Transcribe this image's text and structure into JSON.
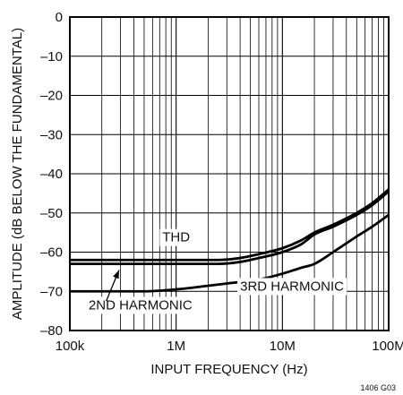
{
  "chart_data": {
    "type": "line",
    "xscale": "log",
    "xlim": [
      100000,
      100000000
    ],
    "ylim": [
      -80,
      0
    ],
    "xlabel": "INPUT FREQUENCY (Hz)",
    "ylabel": "AMPLITUDE (dB BELOW THE FUNDAMENTAL)",
    "x_ticks": [
      {
        "value": 100000,
        "label": "100k"
      },
      {
        "value": 1000000,
        "label": "1M"
      },
      {
        "value": 10000000,
        "label": "10M"
      },
      {
        "value": 100000000,
        "label": "100M"
      }
    ],
    "y_ticks": [
      0,
      -10,
      -20,
      -30,
      -40,
      -50,
      -60,
      -70,
      -80
    ],
    "y_tick_labels": [
      "0",
      "–10",
      "–20",
      "–30",
      "–40",
      "–50",
      "–60",
      "–70",
      "–80"
    ],
    "grid": true,
    "series": [
      {
        "name": "THD",
        "x": [
          100000,
          1000000,
          2500000,
          4000000,
          6000000,
          10000000,
          15000000,
          20000000,
          30000000,
          50000000,
          70000000,
          100000000
        ],
        "y": [
          -62,
          -62,
          -62,
          -61.5,
          -60.5,
          -59,
          -57,
          -55,
          -53,
          -50,
          -47.5,
          -44
        ]
      },
      {
        "name": "2ND HARMONIC",
        "x": [
          100000,
          1000000,
          2500000,
          4000000,
          6000000,
          10000000,
          15000000,
          20000000,
          30000000,
          50000000,
          70000000,
          100000000
        ],
        "y": [
          -63,
          -63,
          -63,
          -62.5,
          -61.5,
          -60,
          -58,
          -55.5,
          -53.5,
          -50.5,
          -48,
          -44.5
        ]
      },
      {
        "name": "3RD HARMONIC",
        "x": [
          100000,
          500000,
          1000000,
          3000000,
          6000000,
          10000000,
          15000000,
          20000000,
          30000000,
          50000000,
          70000000,
          100000000
        ],
        "y": [
          -70,
          -70,
          -69.5,
          -68,
          -67,
          -65.5,
          -64,
          -63,
          -60,
          -56,
          -53.5,
          -50.5
        ]
      }
    ],
    "annotations": {
      "thd": "THD",
      "second": "2ND HARMONIC",
      "third": "3RD HARMONIC"
    },
    "figure_id": "1406 G03"
  }
}
